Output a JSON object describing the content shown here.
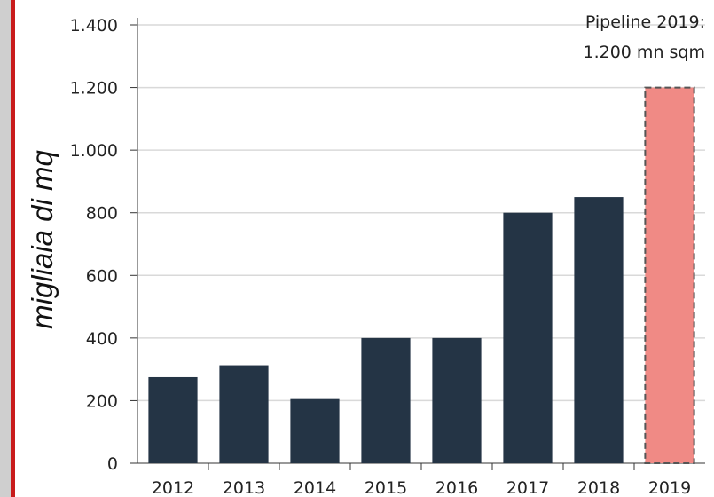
{
  "colors": {
    "bar": "#243445",
    "projected_bar": "#f08a85",
    "projected_border": "#555555",
    "grid": "#d9d9d9",
    "axis": "#333333",
    "accent": "#c81c1c"
  },
  "chart_data": {
    "type": "bar",
    "ylabel": "migliaia di mq",
    "categories": [
      "2012",
      "2013",
      "2014",
      "2015",
      "2016",
      "2017",
      "2018",
      "2019"
    ],
    "values": [
      275,
      313,
      205,
      400,
      400,
      800,
      850,
      1200
    ],
    "projected": [
      false,
      false,
      false,
      false,
      false,
      false,
      false,
      true
    ],
    "ylim": [
      0,
      1400
    ],
    "yticks": [
      0,
      200,
      400,
      600,
      800,
      1000,
      1200,
      1400
    ],
    "ytick_labels": [
      "0",
      "200",
      "400",
      "600",
      "800",
      "1.000",
      "1.200",
      "1.400"
    ],
    "grid": true,
    "annotation": {
      "line1": "Pipeline 2019:",
      "line2": "1.200 mn sqm"
    }
  }
}
